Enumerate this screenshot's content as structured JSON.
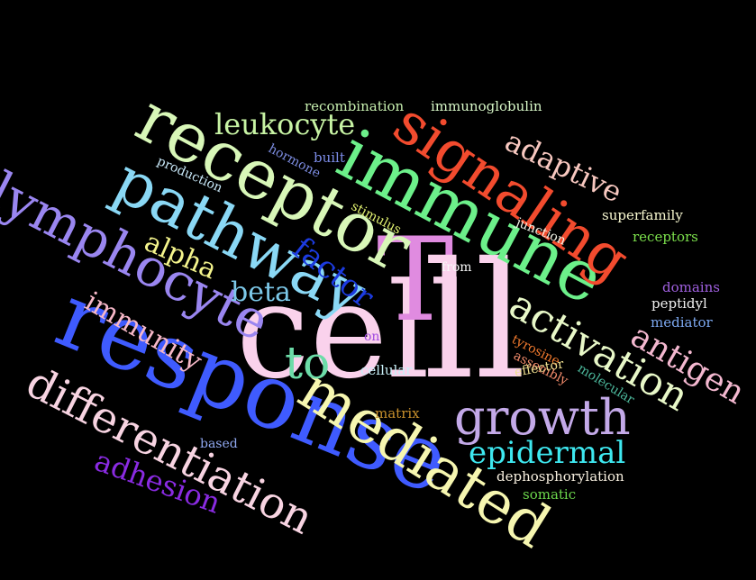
{
  "words": [
    {
      "text": "cell",
      "color": "#FAD2EC"
    },
    {
      "text": "T",
      "color": "#E08BE0"
    },
    {
      "text": "ll",
      "color": "#FAD2EC"
    },
    {
      "text": "response",
      "color": "#3F5BFF"
    },
    {
      "text": "immune",
      "color": "#6CF08A"
    },
    {
      "text": "receptor",
      "color": "#D8F7B8"
    },
    {
      "text": "signaling",
      "color": "#F24B2E"
    },
    {
      "text": "pathway",
      "color": "#8AD8F5"
    },
    {
      "text": "lymphocyte",
      "color": "#9A86F0"
    },
    {
      "text": "mediated",
      "color": "#F6F6B0"
    },
    {
      "text": "differentiation",
      "color": "#F8D4E2"
    },
    {
      "text": "activation",
      "color": "#E8F8C8"
    },
    {
      "text": "growth",
      "color": "#C3A9E8"
    },
    {
      "text": "to",
      "color": "#6CDCA8"
    },
    {
      "text": "leukocyte",
      "color": "#C7F3A4"
    },
    {
      "text": "adaptive",
      "color": "#F8C8C0"
    },
    {
      "text": "antigen",
      "color": "#F4B8D0"
    },
    {
      "text": "immunity",
      "color": "#F7B8C8"
    },
    {
      "text": "epidermal",
      "color": "#3EE8F0"
    },
    {
      "text": "adhesion",
      "color": "#8A2BE2"
    },
    {
      "text": "factor",
      "color": "#1C3BE0"
    },
    {
      "text": "beta",
      "color": "#7CC8E8"
    },
    {
      "text": "alpha",
      "color": "#F4F48C"
    },
    {
      "text": "recombination",
      "color": "#C8F0B0"
    },
    {
      "text": "immunoglobulin",
      "color": "#D8F8C8"
    },
    {
      "text": "superfamily",
      "color": "#F8F8D0"
    },
    {
      "text": "receptors",
      "color": "#7CE04C"
    },
    {
      "text": "domains",
      "color": "#A060E0"
    },
    {
      "text": "peptidyl",
      "color": "#F0F0F0"
    },
    {
      "text": "mediator",
      "color": "#7CA8F0"
    },
    {
      "text": "hormone",
      "color": "#7C8CE0"
    },
    {
      "text": "built",
      "color": "#7C8CE8"
    },
    {
      "text": "production",
      "color": "#C8E8F8"
    },
    {
      "text": "stimulus",
      "color": "#E0F070"
    },
    {
      "text": "junction",
      "color": "#F0F4E8"
    },
    {
      "text": "from",
      "color": "#F8F8F8"
    },
    {
      "text": "on",
      "color": "#A04CE0"
    },
    {
      "text": "cellular",
      "color": "#C8F0F8"
    },
    {
      "text": "tyrosine",
      "color": "#F27A2E"
    },
    {
      "text": "assembly",
      "color": "#F48C6C"
    },
    {
      "text": "effector",
      "color": "#F0E090"
    },
    {
      "text": "molecular",
      "color": "#4CB89C"
    },
    {
      "text": "matrix",
      "color": "#C8902C"
    },
    {
      "text": "based",
      "color": "#90A8F0"
    },
    {
      "text": "dephosphorylation",
      "color": "#F8F0E0"
    },
    {
      "text": "somatic",
      "color": "#6CD84C"
    }
  ]
}
